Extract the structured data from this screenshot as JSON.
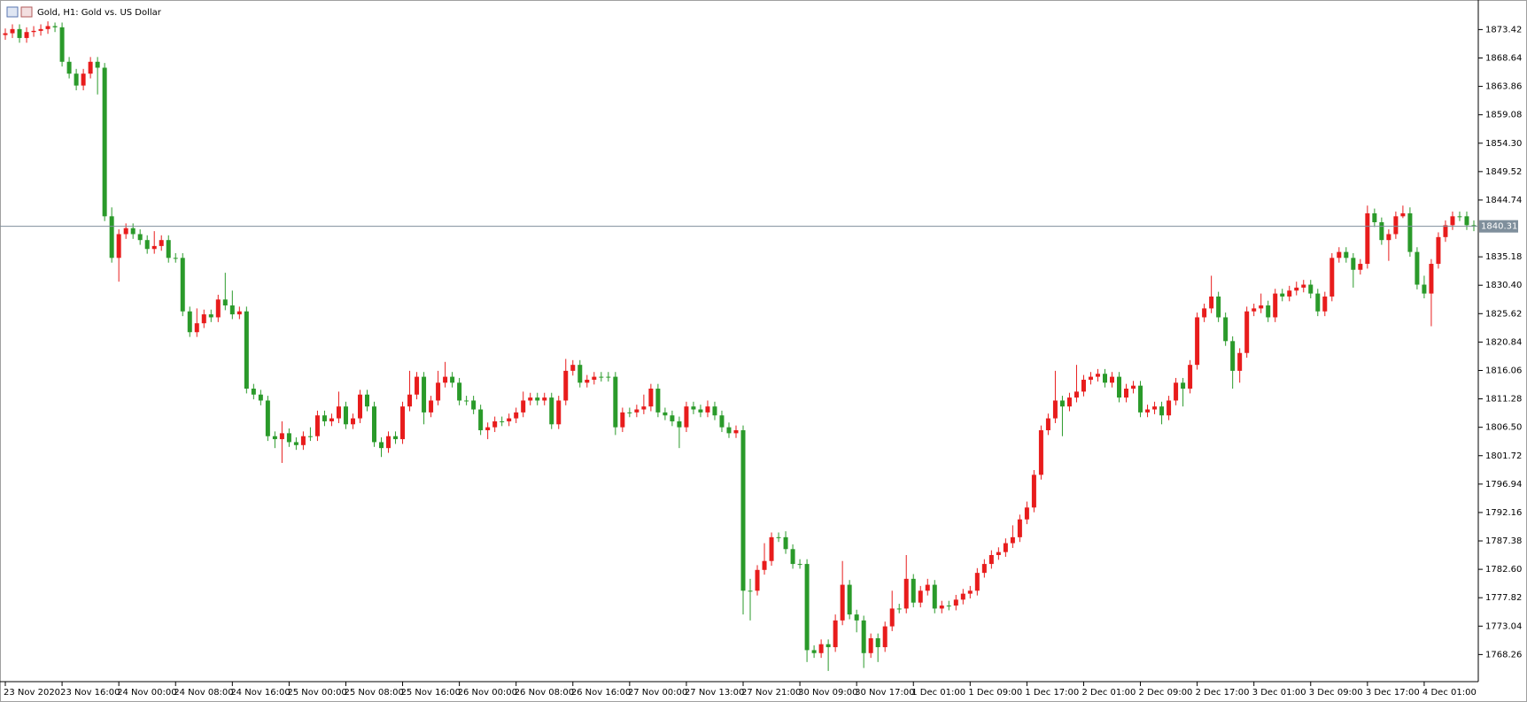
{
  "chart_data": {
    "type": "candlestick",
    "title": "Gold, H1:  Gold vs. US Dollar",
    "up_color": "#e81c1c",
    "down_color": "#2a9a2a",
    "last_price": 1840.31,
    "last_price_color": "#7f8f9c",
    "ylim": [
      1763.7,
      1877.5
    ],
    "yticks": [
      1873.42,
      1868.64,
      1863.86,
      1859.08,
      {
        "value": 1854.3,
        "label": "1854.30"
      },
      1849.52,
      1844.74,
      1835.18,
      {
        "value": 1830.4,
        "label": "1830.40"
      },
      1825.62,
      1820.84,
      1816.06,
      1811.28,
      {
        "value": 1806.5,
        "label": "1806.50"
      },
      1801.72,
      1796.94,
      1792.16,
      1787.38,
      {
        "value": 1782.6,
        "label": "1782.60"
      },
      1777.82,
      1773.04,
      1768.26
    ],
    "categories": [
      "23 Nov 2020",
      null,
      null,
      null,
      null,
      null,
      null,
      null,
      "23 Nov 16:00",
      null,
      null,
      null,
      null,
      null,
      null,
      null,
      "24 Nov 00:00",
      null,
      null,
      null,
      null,
      null,
      null,
      null,
      "24 Nov 08:00",
      null,
      null,
      null,
      null,
      null,
      null,
      null,
      "24 Nov 16:00",
      null,
      null,
      null,
      null,
      null,
      null,
      null,
      "25 Nov 00:00",
      null,
      null,
      null,
      null,
      null,
      null,
      null,
      "25 Nov 08:00",
      null,
      null,
      null,
      null,
      null,
      null,
      null,
      "25 Nov 16:00",
      null,
      null,
      null,
      null,
      null,
      null,
      null,
      "26 Nov 00:00",
      null,
      null,
      null,
      null,
      null,
      null,
      null,
      "26 Nov 08:00",
      null,
      null,
      null,
      null,
      null,
      null,
      null,
      "26 Nov 16:00",
      null,
      null,
      null,
      null,
      null,
      null,
      null,
      "27 Nov 00:00",
      null,
      null,
      null,
      null,
      null,
      null,
      null,
      "27 Nov 13:00",
      null,
      null,
      null,
      null,
      null,
      null,
      null,
      "27 Nov 21:00",
      null,
      null,
      null,
      null,
      null,
      null,
      null,
      "30 Nov 09:00",
      null,
      null,
      null,
      null,
      null,
      null,
      null,
      "30 Nov 17:00",
      null,
      null,
      null,
      null,
      null,
      null,
      null,
      "1 Dec 01:00",
      null,
      null,
      null,
      null,
      null,
      null,
      null,
      "1 Dec 09:00",
      null,
      null,
      null,
      null,
      null,
      null,
      null,
      "1 Dec 17:00",
      null,
      null,
      null,
      null,
      null,
      null,
      null,
      "2 Dec 01:00",
      null,
      null,
      null,
      null,
      null,
      null,
      null,
      "2 Dec 09:00",
      null,
      null,
      null,
      null,
      null,
      null,
      null,
      "2 Dec 17:00",
      null,
      null,
      null,
      null,
      null,
      null,
      null,
      "3 Dec 01:00",
      null,
      null,
      null,
      null,
      null,
      null,
      null,
      "3 Dec 09:00",
      null,
      null,
      null,
      null,
      null,
      null,
      null,
      "3 Dec 17:00",
      null,
      null,
      null,
      null,
      null,
      null,
      null,
      "4 Dec 01:00",
      null,
      null,
      null,
      null,
      null,
      null,
      null
    ],
    "open": [
      1872.5,
      1872.8,
      1873.5,
      1872,
      1873,
      1873.2,
      1873.5,
      1874,
      1873.8,
      1868,
      1866,
      1864,
      1866,
      1868,
      1867,
      1842,
      1835,
      1839,
      1840,
      1839,
      1838,
      1836.5,
      1837,
      1838,
      1835,
      1835,
      1826,
      1822.5,
      1824,
      1825.5,
      1825,
      1828,
      1827,
      1825.5,
      1826,
      1813,
      1812,
      1811,
      1805,
      1804.5,
      1805.5,
      1804,
      1803.5,
      1805,
      1805,
      1808.5,
      1807.5,
      1808,
      1810,
      1807,
      1808,
      1812,
      1810,
      1804,
      1803,
      1805,
      1804.5,
      1810,
      1812,
      1815,
      1809,
      1811,
      1814,
      1815,
      1814,
      1811,
      1811,
      1809.5,
      1806,
      1806.5,
      1807.5,
      1807.5,
      1808,
      1809,
      1811,
      1811.5,
      1811,
      1811.5,
      1807,
      1811,
      1816,
      1817,
      1814,
      1814.5,
      1815,
      1815,
      1815,
      1806.5,
      1809,
      1809,
      1809.5,
      1810,
      1813,
      1809,
      1808.5,
      1807.5,
      1806.5,
      1810,
      1809.5,
      1809,
      1810,
      1808.5,
      1806.5,
      1805.5,
      1806,
      1779,
      1779,
      1782.5,
      1784,
      1788,
      1788,
      1786,
      1783.5,
      1783.5,
      1769,
      1768.5,
      1770,
      1769.5,
      1774,
      1780,
      1775,
      1774,
      1768.5,
      1771,
      1769.5,
      1773,
      1776,
      1776,
      1781,
      1777,
      1779,
      1780,
      1776,
      1776.5,
      1776.5,
      1777.5,
      1778.5,
      1779,
      1782,
      1783.5,
      1785,
      1785.5,
      1787,
      1788,
      1791,
      1793,
      1798.5,
      1806,
      1808,
      1811,
      1810,
      1811.5,
      1812.5,
      1814.5,
      1815,
      1815.5,
      1814,
      1815,
      1811.5,
      1813,
      1813.5,
      1809,
      1809.5,
      1810,
      1808.5,
      1811,
      1814,
      1813,
      1817,
      1825,
      1826.5,
      1828.5,
      1825,
      1821,
      1816,
      1819,
      1826,
      1826.5,
      1827,
      1825,
      1829,
      1828.5,
      1829.5,
      1830,
      1830.5,
      1829,
      1826,
      1828.5,
      1835,
      1836,
      1835,
      1833,
      1834,
      1842.5,
      1841,
      1838,
      1839,
      1842,
      1842.5,
      1836,
      1830.5,
      1829,
      1834,
      1838.5,
      1840.5,
      1842,
      1842,
      1840.5
    ],
    "high": [
      1873.6,
      1874.3,
      1874.3,
      1873.8,
      1874.0,
      1874.3,
      1874.8,
      1874.6,
      1874.6,
      1868.8,
      1866.8,
      1866.8,
      1868.8,
      1868.8,
      1867.8,
      1843.5,
      1839.8,
      1840.8,
      1840.8,
      1839.8,
      1838.8,
      1839.5,
      1838.8,
      1838.8,
      1835.8,
      1835.8,
      1826.8,
      1826.5,
      1826.3,
      1826.3,
      1828.8,
      1832.5,
      1829.5,
      1826.8,
      1826.8,
      1813.8,
      1812.8,
      1811.8,
      1805.8,
      1807.5,
      1806.3,
      1804.8,
      1805.8,
      1806.5,
      1809.3,
      1809.3,
      1808.8,
      1812.5,
      1810.8,
      1808.8,
      1812.8,
      1812.8,
      1810.8,
      1804.8,
      1805.8,
      1805.8,
      1810.8,
      1816,
      1815.8,
      1815.8,
      1811.8,
      1816,
      1817.5,
      1815.8,
      1814.8,
      1811.8,
      1811.8,
      1810.3,
      1807.3,
      1808.3,
      1808.3,
      1808.8,
      1809.8,
      1812.5,
      1812.3,
      1812.3,
      1812.3,
      1812.3,
      1811.8,
      1818,
      1817.8,
      1817.8,
      1815.3,
      1815.8,
      1815.8,
      1815.8,
      1815.8,
      1809.8,
      1809.8,
      1810.3,
      1812,
      1813.8,
      1813.8,
      1809.8,
      1809.3,
      1808.3,
      1810.8,
      1810.8,
      1810.3,
      1811,
      1810.8,
      1809.3,
      1807.3,
      1806.8,
      1806.8,
      1781,
      1783.3,
      1787,
      1788.8,
      1788.8,
      1789,
      1786.8,
      1784.3,
      1784.3,
      1769.8,
      1770.8,
      1770.8,
      1775,
      1784,
      1780.8,
      1775.8,
      1774.8,
      1771.8,
      1771.8,
      1773.8,
      1779,
      1776.8,
      1785,
      1781.8,
      1779.8,
      1781,
      1780.8,
      1777.3,
      1777.3,
      1778.3,
      1779.3,
      1779.8,
      1782.8,
      1784.3,
      1785.8,
      1786.3,
      1787.8,
      1790,
      1791.8,
      1794,
      1799.3,
      1806.8,
      1808.8,
      1816,
      1811.8,
      1812.3,
      1817,
      1815.3,
      1815.8,
      1816.3,
      1816.3,
      1815.8,
      1815.8,
      1813.8,
      1814.3,
      1814.3,
      1810.3,
      1810.8,
      1810.8,
      1811.8,
      1814.8,
      1814.8,
      1817.8,
      1825.8,
      1827.3,
      1832,
      1829.3,
      1825.8,
      1821.8,
      1819.8,
      1826.8,
      1827.3,
      1829,
      1827.8,
      1829.8,
      1829.8,
      1830.3,
      1831,
      1831.3,
      1831.3,
      1829.8,
      1829.3,
      1835.8,
      1836.8,
      1836.8,
      1835.8,
      1834.8,
      1843.8,
      1843.3,
      1841.8,
      1839.8,
      1842.8,
      1843.8,
      1843.5,
      1836.8,
      1832,
      1834.8,
      1839.3,
      1841.3,
      1842.8,
      1842.8,
      1842.8,
      1841.3
    ],
    "low": [
      1871.7,
      1872.0,
      1871.2,
      1871.2,
      1872.2,
      1872.4,
      1872.7,
      1873.0,
      1867.2,
      1865.2,
      1863.2,
      1863.2,
      1865.2,
      1862.5,
      1841.2,
      1834.2,
      1831,
      1838.2,
      1838.2,
      1837.2,
      1835.7,
      1835.7,
      1836.2,
      1834.2,
      1834.2,
      1825.2,
      1821.7,
      1821.7,
      1823.2,
      1824.2,
      1824.2,
      1826.2,
      1824.7,
      1824.7,
      1812.2,
      1811.2,
      1810.2,
      1804.2,
      1803.0,
      1800.5,
      1803.2,
      1802.7,
      1802.7,
      1804.2,
      1804.2,
      1806.7,
      1806.7,
      1807.2,
      1806.2,
      1806.2,
      1807.2,
      1809.2,
      1803.2,
      1801.5,
      1802.2,
      1803.7,
      1803.7,
      1809.2,
      1811.2,
      1807,
      1808.2,
      1810.2,
      1813.2,
      1813.2,
      1810.2,
      1810.2,
      1808.7,
      1805.2,
      1804.5,
      1805.7,
      1806.7,
      1806.7,
      1807.2,
      1808.2,
      1810.2,
      1810.2,
      1810.2,
      1806.2,
      1806.2,
      1810.2,
      1815.2,
      1813.2,
      1813.2,
      1813.7,
      1814.2,
      1814.2,
      1805.2,
      1805.7,
      1808.2,
      1808.2,
      1808.7,
      1809.2,
      1808.2,
      1807.7,
      1806.7,
      1803,
      1805.7,
      1808.7,
      1808.2,
      1808.2,
      1807.7,
      1805.7,
      1804.7,
      1804.7,
      1775,
      1774,
      1778.2,
      1781.7,
      1783.2,
      1787.2,
      1785.2,
      1782.7,
      1782.7,
      1767,
      1767.7,
      1767.7,
      1765.5,
      1768.7,
      1773.2,
      1774.2,
      1772,
      1766,
      1767.7,
      1767,
      1768.7,
      1772.2,
      1775.2,
      1775.2,
      1776.2,
      1776.2,
      1778.2,
      1775.2,
      1775.2,
      1775.7,
      1775.7,
      1776.7,
      1777.7,
      1778.2,
      1781.2,
      1782.7,
      1784.2,
      1784.7,
      1786.2,
      1787.2,
      1790.2,
      1792.2,
      1797.7,
      1805.2,
      1807.2,
      1805,
      1809.2,
      1810.7,
      1811.7,
      1813.7,
      1814.2,
      1813.2,
      1813.2,
      1810.7,
      1810.7,
      1812.2,
      1808.2,
      1808.2,
      1808.7,
      1807,
      1807.7,
      1810.2,
      1810,
      1812.2,
      1816.2,
      1824.2,
      1825.7,
      1824.2,
      1820.2,
      1813,
      1814,
      1818.2,
      1825.2,
      1825.7,
      1824.2,
      1824.2,
      1827.7,
      1827.7,
      1828.7,
      1829.2,
      1828.2,
      1825.2,
      1825.2,
      1827.7,
      1834.2,
      1834.2,
      1830,
      1832.2,
      1833.2,
      1840.2,
      1837.2,
      1834.5,
      1838.2,
      1841.7,
      1835.2,
      1829.7,
      1828.2,
      1823.5,
      1833.2,
      1837.7,
      1839.7,
      1841.2,
      1839.7,
      1839.5
    ],
    "close": [
      1872.8,
      1873.5,
      1872,
      1873,
      1873.2,
      1873.5,
      1874,
      1873.8,
      1868,
      1866,
      1864,
      1866,
      1868,
      1867,
      1842,
      1835,
      1839,
      1840,
      1839,
      1838,
      1836.5,
      1837,
      1838,
      1835,
      1835,
      1826,
      1822.5,
      1824,
      1825.5,
      1825,
      1828,
      1827,
      1825.5,
      1826,
      1813,
      1812,
      1811,
      1805,
      1804.5,
      1805.5,
      1804,
      1803.5,
      1805,
      1805,
      1808.5,
      1807.5,
      1808,
      1810,
      1807,
      1808,
      1812,
      1810,
      1804,
      1803,
      1805,
      1804.5,
      1810,
      1812,
      1815,
      1809,
      1811,
      1814,
      1815,
      1814,
      1811,
      1811,
      1809.5,
      1806,
      1806.5,
      1807.5,
      1807.5,
      1808,
      1809,
      1811,
      1811.5,
      1811,
      1811.5,
      1807,
      1811,
      1816,
      1817,
      1814,
      1814.5,
      1815,
      1815,
      1815,
      1806.5,
      1809,
      1809,
      1809.5,
      1810,
      1813,
      1809,
      1808.5,
      1807.5,
      1806.5,
      1810,
      1809.5,
      1809,
      1810,
      1808.5,
      1806.5,
      1805.5,
      1806,
      1779,
      1779,
      1782.5,
      1784,
      1788,
      1788,
      1786,
      1783.5,
      1783.5,
      1769,
      1768.5,
      1770,
      1769.5,
      1774,
      1780,
      1775,
      1774,
      1768.5,
      1771,
      1769.5,
      1773,
      1776,
      1776,
      1781,
      1777,
      1779,
      1780,
      1776,
      1776.5,
      1776.5,
      1777.5,
      1778.5,
      1779,
      1782,
      1783.5,
      1785,
      1785.5,
      1787,
      1788,
      1791,
      1793,
      1798.5,
      1806,
      1808,
      1811,
      1810,
      1811.5,
      1812.5,
      1814.5,
      1815,
      1815.5,
      1814,
      1815,
      1811.5,
      1813,
      1813.5,
      1809,
      1809.5,
      1810,
      1808.5,
      1811,
      1814,
      1813,
      1817,
      1825,
      1826.5,
      1828.5,
      1825,
      1821,
      1816,
      1819,
      1826,
      1826.5,
      1827,
      1825,
      1829,
      1828.5,
      1829.5,
      1830,
      1830.5,
      1829,
      1826,
      1828.5,
      1835,
      1836,
      1835,
      1833,
      1834,
      1842.5,
      1841,
      1838,
      1839,
      1842,
      1842.5,
      1836,
      1830.5,
      1829,
      1834,
      1838.5,
      1840.5,
      1842,
      1842,
      1840.5,
      1840.3
    ]
  }
}
